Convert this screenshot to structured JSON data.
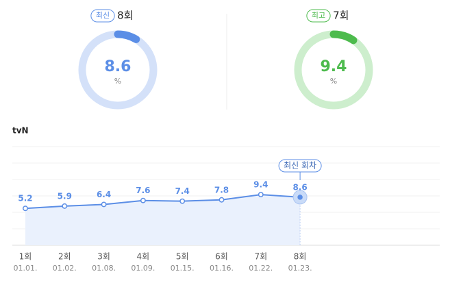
{
  "chart_data": [
    {
      "type": "gauge",
      "badge": "최신",
      "label": "8회",
      "value": 8.6,
      "unit": "%",
      "ylim": [
        0,
        100
      ],
      "color": "#5b8ee6",
      "track_color": "#d4e1f9"
    },
    {
      "type": "gauge",
      "badge": "최고",
      "label": "7회",
      "value": 9.4,
      "unit": "%",
      "ylim": [
        0,
        100
      ],
      "color": "#4dbb4d",
      "track_color": "#cdeecd"
    },
    {
      "type": "line",
      "title": "tvN",
      "categories": [
        "1회",
        "2회",
        "3회",
        "4회",
        "5회",
        "6회",
        "7회",
        "8회"
      ],
      "dates": [
        "01.01.",
        "01.02.",
        "01.08.",
        "01.09.",
        "01.15.",
        "01.16.",
        "01.22.",
        "01.23."
      ],
      "values": [
        5.2,
        5.9,
        6.4,
        7.6,
        7.4,
        7.8,
        9.4,
        8.6
      ],
      "color": "#5b8ee6",
      "ylim": [
        -6,
        24
      ],
      "yticks": [
        -6,
        -1,
        4,
        9,
        14,
        19,
        24
      ],
      "grid": true,
      "annotation": "최신 회차"
    }
  ]
}
